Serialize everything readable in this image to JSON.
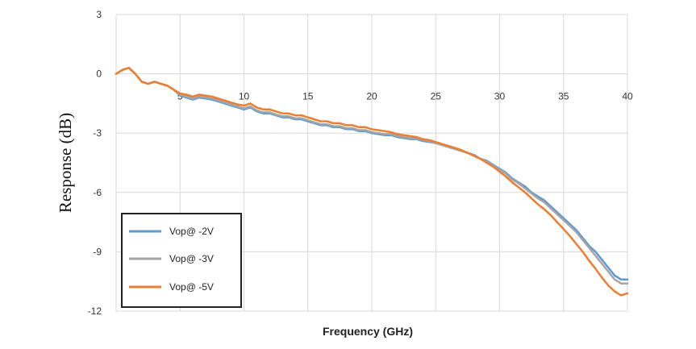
{
  "chart_data": {
    "type": "line",
    "title": "",
    "xlabel": "Frequency (GHz)",
    "ylabel": "Response (dB)",
    "xlim": [
      0,
      40
    ],
    "ylim": [
      -12,
      3
    ],
    "x_ticks": [
      5,
      10,
      15,
      20,
      25,
      30,
      35,
      40
    ],
    "y_ticks": [
      3,
      0,
      -3,
      -6,
      -9,
      -12
    ],
    "grid": true,
    "legend_position": "bottom-left",
    "colors": {
      "Vop@ -2V": "#5b9bd5",
      "Vop@ -3V": "#a5a5a5",
      "Vop@ -5V": "#ed7d31"
    },
    "series": [
      {
        "name": "Vop@ -2V",
        "x": [
          0,
          0.5,
          1,
          1.5,
          2,
          2.5,
          3,
          3.5,
          4,
          4.5,
          5,
          5.5,
          6,
          6.5,
          7,
          7.5,
          8,
          8.5,
          9,
          9.5,
          10,
          10.5,
          11,
          11.5,
          12,
          12.5,
          13,
          13.5,
          14,
          14.5,
          15,
          15.5,
          16,
          16.5,
          17,
          17.5,
          18,
          18.5,
          19,
          19.5,
          20,
          20.5,
          21,
          21.5,
          22,
          22.5,
          23,
          23.5,
          24,
          24.5,
          25,
          25.5,
          26,
          26.5,
          27,
          27.5,
          28,
          28.5,
          29,
          29.5,
          30,
          30.5,
          31,
          31.5,
          32,
          32.5,
          33,
          33.5,
          34,
          34.5,
          35,
          35.5,
          36,
          36.5,
          37,
          37.5,
          38,
          38.5,
          39,
          39.5,
          40
        ],
        "y": [
          0,
          0.2,
          0.3,
          0,
          -0.4,
          -0.5,
          -0.4,
          -0.5,
          -0.6,
          -0.8,
          -1.1,
          -1.2,
          -1.3,
          -1.2,
          -1.25,
          -1.3,
          -1.4,
          -1.5,
          -1.6,
          -1.7,
          -1.8,
          -1.7,
          -1.9,
          -2.0,
          -2.0,
          -2.1,
          -2.2,
          -2.2,
          -2.3,
          -2.3,
          -2.4,
          -2.5,
          -2.6,
          -2.6,
          -2.7,
          -2.7,
          -2.8,
          -2.8,
          -2.9,
          -2.9,
          -3.0,
          -3.05,
          -3.1,
          -3.1,
          -3.2,
          -3.25,
          -3.3,
          -3.3,
          -3.4,
          -3.45,
          -3.5,
          -3.6,
          -3.7,
          -3.8,
          -3.9,
          -4.0,
          -4.1,
          -4.3,
          -4.4,
          -4.6,
          -4.8,
          -5.0,
          -5.3,
          -5.5,
          -5.7,
          -6.0,
          -6.2,
          -6.4,
          -6.7,
          -7.0,
          -7.3,
          -7.6,
          -7.9,
          -8.3,
          -8.7,
          -9.0,
          -9.4,
          -9.8,
          -10.2,
          -10.4,
          -10.4
        ]
      },
      {
        "name": "Vop@ -3V",
        "x": [
          0,
          0.5,
          1,
          1.5,
          2,
          2.5,
          3,
          3.5,
          4,
          4.5,
          5,
          5.5,
          6,
          6.5,
          7,
          7.5,
          8,
          8.5,
          9,
          9.5,
          10,
          10.5,
          11,
          11.5,
          12,
          12.5,
          13,
          13.5,
          14,
          14.5,
          15,
          15.5,
          16,
          16.5,
          17,
          17.5,
          18,
          18.5,
          19,
          19.5,
          20,
          20.5,
          21,
          21.5,
          22,
          22.5,
          23,
          23.5,
          24,
          24.5,
          25,
          25.5,
          26,
          26.5,
          27,
          27.5,
          28,
          28.5,
          29,
          29.5,
          30,
          30.5,
          31,
          31.5,
          32,
          32.5,
          33,
          33.5,
          34,
          34.5,
          35,
          35.5,
          36,
          36.5,
          37,
          37.5,
          38,
          38.5,
          39,
          39.5,
          40
        ],
        "y": [
          0,
          0.2,
          0.3,
          0,
          -0.4,
          -0.5,
          -0.4,
          -0.5,
          -0.6,
          -0.8,
          -1.05,
          -1.15,
          -1.25,
          -1.15,
          -1.2,
          -1.25,
          -1.35,
          -1.45,
          -1.55,
          -1.65,
          -1.75,
          -1.65,
          -1.85,
          -1.95,
          -1.95,
          -2.05,
          -2.15,
          -2.15,
          -2.25,
          -2.25,
          -2.35,
          -2.45,
          -2.55,
          -2.55,
          -2.65,
          -2.65,
          -2.75,
          -2.75,
          -2.85,
          -2.85,
          -2.95,
          -3.0,
          -3.05,
          -3.05,
          -3.15,
          -3.2,
          -3.25,
          -3.25,
          -3.35,
          -3.4,
          -3.5,
          -3.6,
          -3.7,
          -3.8,
          -3.9,
          -4.0,
          -4.15,
          -4.3,
          -4.45,
          -4.65,
          -4.85,
          -5.05,
          -5.35,
          -5.55,
          -5.8,
          -6.05,
          -6.3,
          -6.5,
          -6.8,
          -7.1,
          -7.4,
          -7.7,
          -8.0,
          -8.4,
          -8.8,
          -9.2,
          -9.6,
          -10.0,
          -10.4,
          -10.6,
          -10.6
        ]
      },
      {
        "name": "Vop@ -5V",
        "x": [
          0,
          0.5,
          1,
          1.5,
          2,
          2.5,
          3,
          3.5,
          4,
          4.5,
          5,
          5.5,
          6,
          6.5,
          7,
          7.5,
          8,
          8.5,
          9,
          9.5,
          10,
          10.5,
          11,
          11.5,
          12,
          12.5,
          13,
          13.5,
          14,
          14.5,
          15,
          15.5,
          16,
          16.5,
          17,
          17.5,
          18,
          18.5,
          19,
          19.5,
          20,
          20.5,
          21,
          21.5,
          22,
          22.5,
          23,
          23.5,
          24,
          24.5,
          25,
          25.5,
          26,
          26.5,
          27,
          27.5,
          28,
          28.5,
          29,
          29.5,
          30,
          30.5,
          31,
          31.5,
          32,
          32.5,
          33,
          33.5,
          34,
          34.5,
          35,
          35.5,
          36,
          36.5,
          37,
          37.5,
          38,
          38.5,
          39,
          39.5,
          40
        ],
        "y": [
          0,
          0.2,
          0.3,
          0,
          -0.4,
          -0.5,
          -0.4,
          -0.5,
          -0.6,
          -0.8,
          -1.0,
          -1.05,
          -1.15,
          -1.05,
          -1.1,
          -1.15,
          -1.25,
          -1.35,
          -1.45,
          -1.55,
          -1.6,
          -1.5,
          -1.7,
          -1.8,
          -1.8,
          -1.9,
          -2.0,
          -2.0,
          -2.1,
          -2.1,
          -2.2,
          -2.3,
          -2.4,
          -2.4,
          -2.5,
          -2.5,
          -2.6,
          -2.6,
          -2.7,
          -2.7,
          -2.8,
          -2.85,
          -2.9,
          -2.95,
          -3.05,
          -3.1,
          -3.15,
          -3.2,
          -3.3,
          -3.35,
          -3.45,
          -3.55,
          -3.65,
          -3.75,
          -3.85,
          -4.0,
          -4.15,
          -4.3,
          -4.5,
          -4.7,
          -4.95,
          -5.2,
          -5.5,
          -5.75,
          -6.0,
          -6.3,
          -6.6,
          -6.85,
          -7.15,
          -7.5,
          -7.85,
          -8.2,
          -8.6,
          -9.0,
          -9.45,
          -9.85,
          -10.3,
          -10.7,
          -11.0,
          -11.2,
          -11.1
        ]
      }
    ]
  }
}
